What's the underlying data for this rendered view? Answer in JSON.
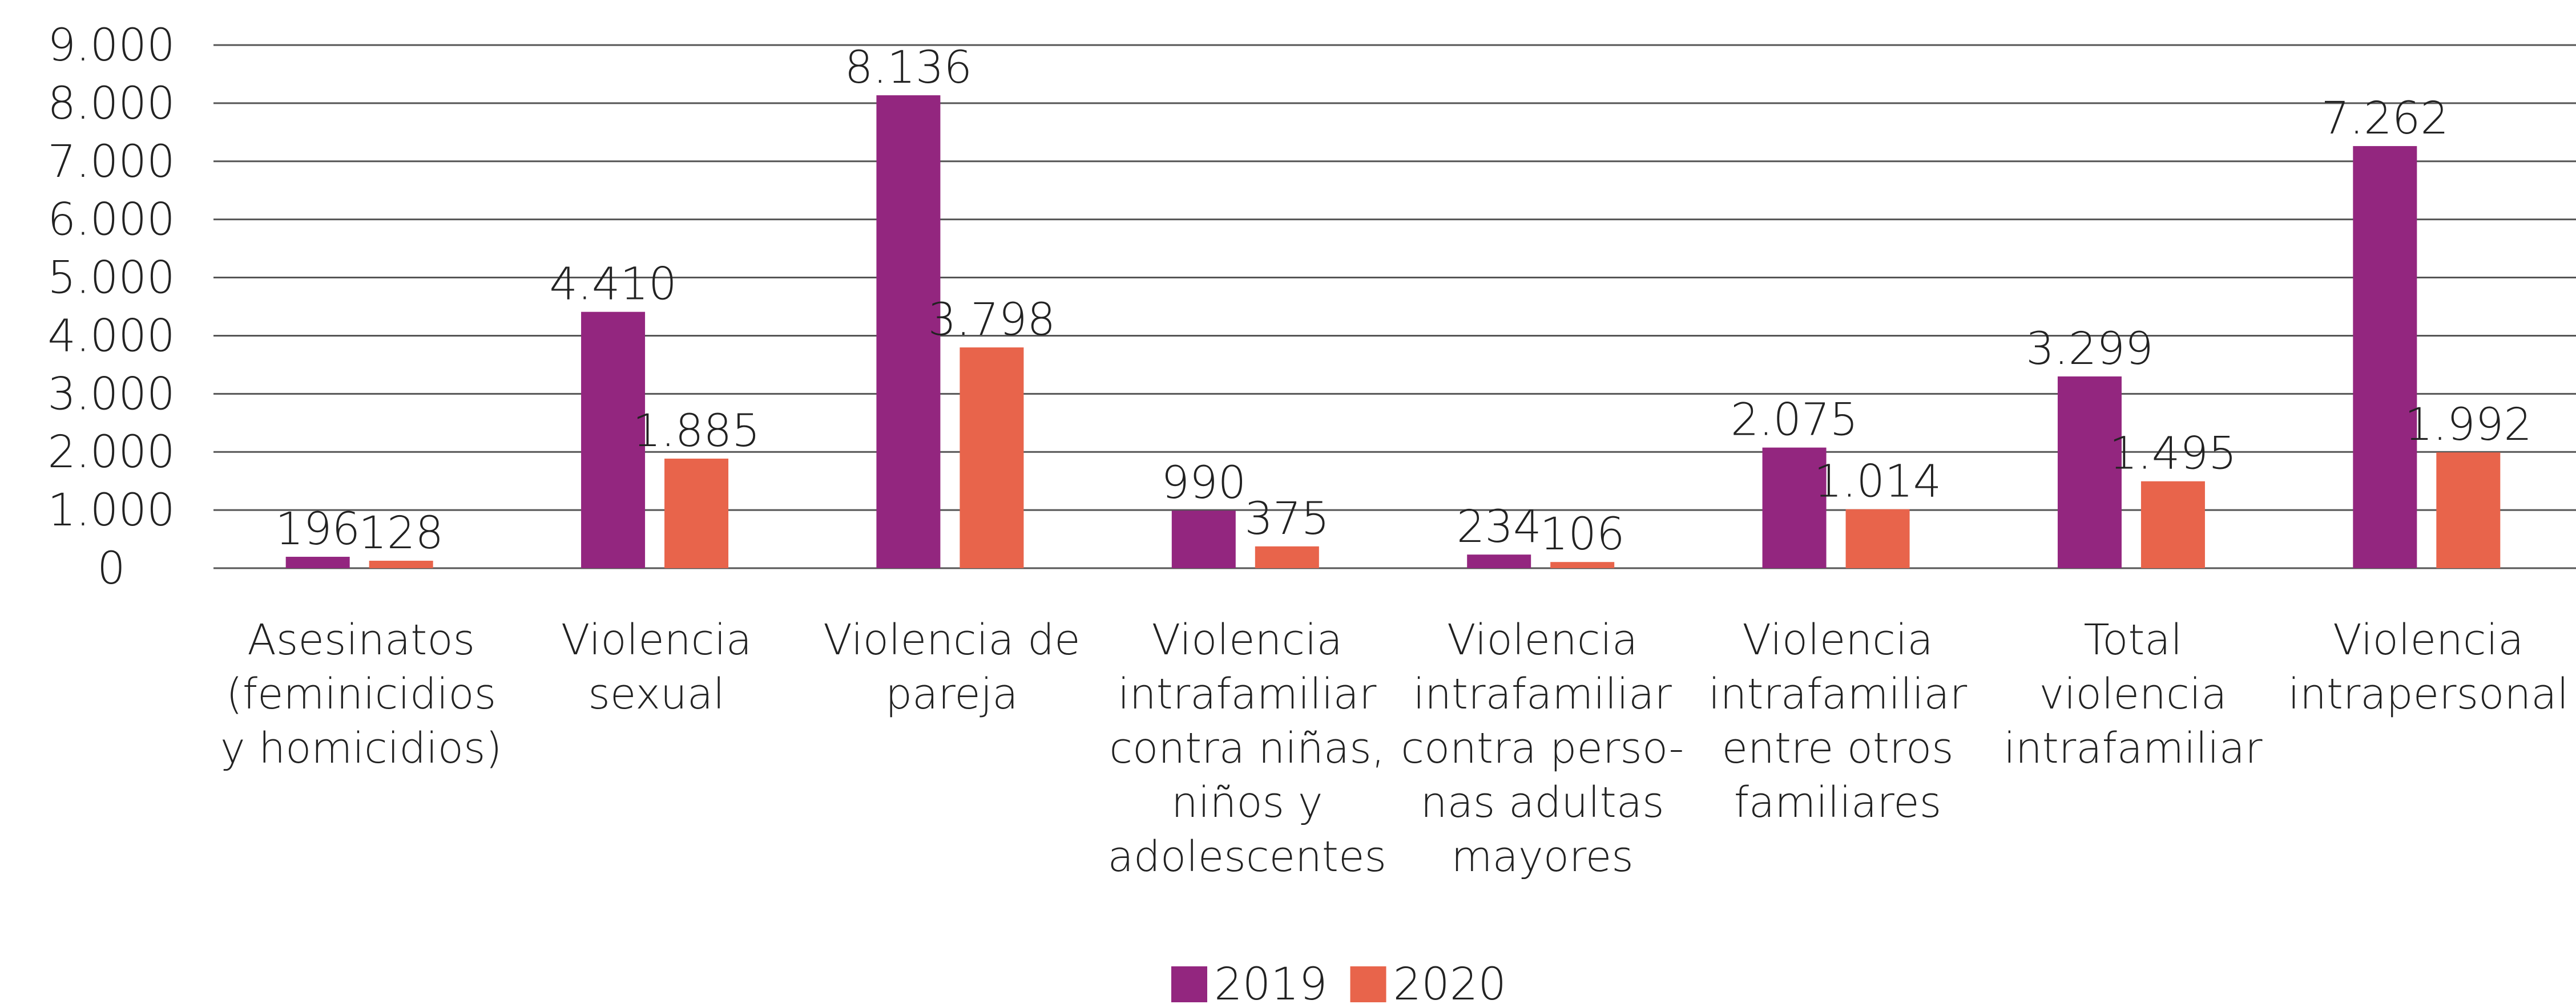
{
  "chart_data": {
    "type": "bar",
    "categories": [
      "Asesinatos\n(feminicidios\ny homicidios)",
      "Violencia\nsexual",
      "Violencia de\npareja",
      "Violencia\nintrafamiliar\ncontra niñas,\nniños y\nadolescentes",
      "Violencia\nintrafamiliar\ncontra perso-\nnas adultas\nmayores",
      "Violencia\nintrafamiliar\nentre otros\nfamiliares",
      "Total\nviolencia\nintrafamiliar",
      "Violencia\nintrapersonal"
    ],
    "series": [
      {
        "name": "2019",
        "color": "#93267f",
        "values": [
          196,
          4410,
          8136,
          990,
          234,
          2075,
          3299,
          7262
        ],
        "value_labels": [
          "196",
          "4.410",
          "8.136",
          "990",
          "234",
          "2.075",
          "3.299",
          "7.262"
        ]
      },
      {
        "name": "2020",
        "color": "#e8644b",
        "values": [
          128,
          1885,
          3798,
          375,
          106,
          1014,
          1495,
          1992
        ],
        "value_labels": [
          "128",
          "1.885",
          "3.798",
          "375",
          "106",
          "1.014",
          "1.495",
          "1.992"
        ]
      }
    ],
    "ylim": [
      0,
      9000
    ],
    "yticks": [
      0,
      {
        "value": 1000,
        "label": "1.000"
      },
      {
        "value": 2000,
        "label": "2.000"
      },
      {
        "value": 3000,
        "label": "3.000"
      },
      {
        "value": 4000,
        "label": "4.000"
      },
      {
        "value": 5000,
        "label": "5.000"
      },
      {
        "value": 6000,
        "label": "6.000"
      },
      {
        "value": 7000,
        "label": "7.000"
      },
      {
        "value": 8000,
        "label": "8.000"
      },
      {
        "value": 9000,
        "label": "9.000"
      }
    ],
    "grid": true,
    "legend": "bottom"
  }
}
